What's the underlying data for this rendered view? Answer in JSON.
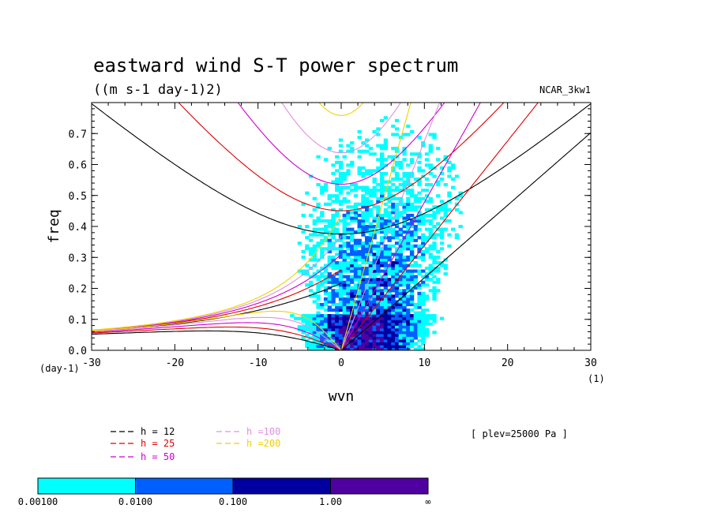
{
  "chart_data": {
    "type": "heatmap",
    "title": "eastward wind S-T power spectrum",
    "subtitle": "((m s-1 day-1)2)",
    "dataset_label": "NCAR_3kw1",
    "xlabel": "wvn",
    "ylabel": "freq",
    "x_unit": "(1)",
    "y_unit": "(day-1)",
    "xlim": [
      -30,
      30
    ],
    "ylim": [
      0,
      0.8
    ],
    "x_ticks": [
      -30,
      -20,
      -10,
      0,
      10,
      20,
      30
    ],
    "x_tick_labels": [
      "-30",
      "-20",
      "-10",
      "0",
      "10",
      "20",
      "30"
    ],
    "y_ticks": [
      0,
      0.1,
      0.2,
      0.3,
      0.4,
      0.5,
      0.6,
      0.7
    ],
    "y_tick_labels": [
      "0.0",
      "0.1",
      "0.2",
      "0.3",
      "0.4",
      "0.5",
      "0.6",
      "0.7"
    ],
    "annotation": "[ plev=25000 Pa ]",
    "dispersion_curves": [
      {
        "label": "h = 12",
        "h": 12,
        "color": "#000000"
      },
      {
        "label": "h = 25",
        "h": 25,
        "color": "#e00000"
      },
      {
        "label": "h = 50",
        "h": 50,
        "color": "#d000d0"
      },
      {
        "label": "h =100",
        "h": 100,
        "color": "#e090e0"
      },
      {
        "label": "h =200",
        "h": 200,
        "color": "#f0d000"
      }
    ],
    "colorbar": {
      "levels": [
        "0.00100",
        "0.0100",
        "0.100",
        "1.00",
        "∞"
      ],
      "colors": [
        "#00ffff",
        "#0060ff",
        "#0000a0",
        "#5000a0"
      ]
    },
    "contour_fill_colors": {
      "level1": "#00ffff",
      "level2": "#0060ff",
      "level3": "#0000a0",
      "level4": "#5000a0"
    }
  }
}
